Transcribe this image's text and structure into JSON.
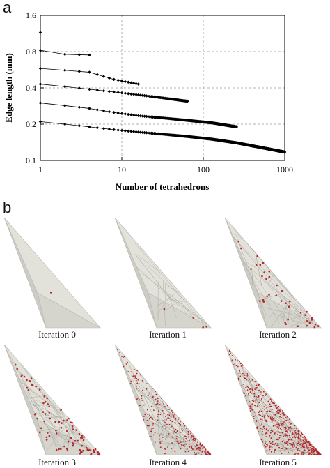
{
  "panels": {
    "a": "a",
    "b": "b"
  },
  "chart_data": {
    "type": "line",
    "x_scale": "log",
    "y_scale": "log",
    "xlim": [
      1,
      1000
    ],
    "ylim": [
      0.1,
      1.6
    ],
    "xlabel": "Number of tetrahedrons",
    "ylabel": "Edge length (mm)",
    "x_ticks": [
      1,
      10,
      100,
      1000
    ],
    "x_tick_labels": [
      "1",
      "10",
      "100",
      "1000"
    ],
    "y_ticks": [
      0.1,
      0.2,
      0.4,
      0.8,
      1.6
    ],
    "y_tick_labels": [
      "0.1",
      "0.2",
      "0.4",
      "0.8",
      "1.6"
    ],
    "grid": true,
    "series": [
      {
        "x_start": 1,
        "x_end": 1,
        "y_start": 1.15,
        "y_end": 1.15
      },
      {
        "x_start": 1,
        "x_end": 4,
        "y_start": 0.82,
        "y_end": 0.75,
        "anchors": [
          [
            1,
            0.82
          ],
          [
            2,
            0.76
          ],
          [
            4,
            0.75
          ]
        ]
      },
      {
        "x_start": 1,
        "x_end": 16,
        "y_start": 0.58,
        "y_end": 0.43,
        "anchors": [
          [
            1,
            0.58
          ],
          [
            2,
            0.56
          ],
          [
            4,
            0.54
          ],
          [
            8,
            0.47
          ],
          [
            16,
            0.43
          ]
        ]
      },
      {
        "x_start": 1,
        "x_end": 64,
        "y_start": 0.43,
        "y_end": 0.31,
        "anchors": [
          [
            1,
            0.43
          ],
          [
            2,
            0.41
          ],
          [
            4,
            0.39
          ],
          [
            8,
            0.37
          ],
          [
            16,
            0.35
          ],
          [
            32,
            0.33
          ],
          [
            64,
            0.31
          ]
        ]
      },
      {
        "x_start": 1,
        "x_end": 256,
        "y_start": 0.3,
        "y_end": 0.19,
        "anchors": [
          [
            1,
            0.3
          ],
          [
            2,
            0.285
          ],
          [
            4,
            0.27
          ],
          [
            8,
            0.25
          ],
          [
            16,
            0.235
          ],
          [
            32,
            0.225
          ],
          [
            64,
            0.215
          ],
          [
            128,
            0.205
          ],
          [
            256,
            0.19
          ]
        ]
      },
      {
        "x_start": 1,
        "x_end": 1024,
        "y_start": 0.21,
        "y_end": 0.117,
        "anchors": [
          [
            1,
            0.21
          ],
          [
            2,
            0.2
          ],
          [
            4,
            0.19
          ],
          [
            8,
            0.18
          ],
          [
            16,
            0.172
          ],
          [
            32,
            0.165
          ],
          [
            64,
            0.158
          ],
          [
            128,
            0.15
          ],
          [
            256,
            0.14
          ],
          [
            512,
            0.128
          ],
          [
            1024,
            0.117
          ]
        ]
      }
    ]
  },
  "iterations": {
    "captions": [
      "Iteration 0",
      "Iteration 1",
      "Iteration 2",
      "Iteration 3",
      "Iteration 4",
      "Iteration 5"
    ],
    "point_density": [
      1,
      4,
      40,
      90,
      300,
      600
    ],
    "mesh_fraction": [
      0,
      0.3,
      0.6,
      0.75,
      0.9,
      0.95
    ]
  }
}
